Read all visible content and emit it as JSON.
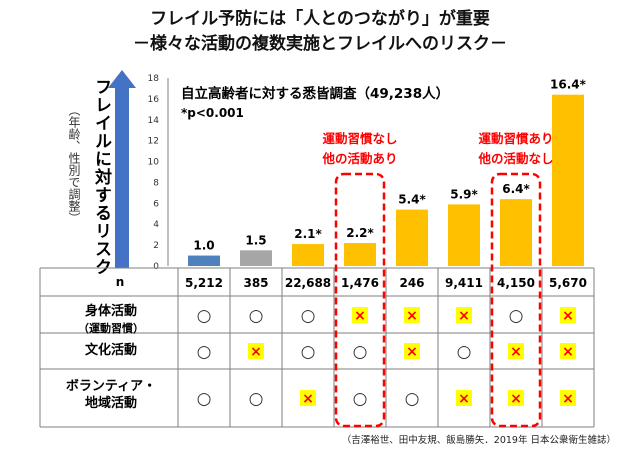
{
  "title_line1": "フレイル予防には「人とのつながり」が重要",
  "title_line2": "－様々な活動の複数実施とフレイルへのリスク－",
  "y_axis_label": "フレイルに対するリスク",
  "y_axis_note": "（年齢、性別で調整）",
  "study_title": "自立高齢者に対する悉皆調査（49,238人）",
  "significance_note": "*p<0.001",
  "annotation_left": [
    "運動習慣なし",
    "他の活動あり"
  ],
  "annotation_right": [
    "運動習慣あり",
    "他の活動なし"
  ],
  "n_label": "n",
  "n_values": [
    "5,212",
    "385",
    "22,688",
    "1,476",
    "246",
    "9,411",
    "4,150",
    "5,670"
  ],
  "row_labels": [
    {
      "main": "身体活動",
      "sub": "（運動習慣）"
    },
    {
      "main": "文化活動",
      "sub": ""
    },
    {
      "main": "ボランティア・",
      "sub": "地域活動"
    }
  ],
  "circle_symbol": "○",
  "cross_symbol": "×",
  "activity_matrix": [
    [
      true,
      true,
      true,
      false,
      false,
      false,
      true,
      false
    ],
    [
      true,
      false,
      true,
      true,
      false,
      true,
      false,
      false
    ],
    [
      true,
      true,
      false,
      true,
      true,
      false,
      false,
      false
    ]
  ],
  "citation": "（吉澤裕世、田中友規、飯島勝矢．2019年 日本公衆衛生雑誌）",
  "colors": {
    "bar_reference": "#4f81bd",
    "bar_gray": "#a6a6a6",
    "bar_yellow": "#ffc000",
    "arrow": "#4472c4",
    "annotation": "#ff0000",
    "cross_bg": "#ffff00",
    "cross": "#ff0000"
  },
  "chart_data": {
    "type": "bar",
    "categories": [
      "5,212",
      "385",
      "22,688",
      "1,476",
      "246",
      "9,411",
      "4,150",
      "5,670"
    ],
    "values": [
      1.0,
      1.5,
      2.1,
      2.2,
      5.4,
      5.9,
      6.4,
      16.4
    ],
    "value_labels": [
      "1.0",
      "1.5",
      "2.1*",
      "2.2*",
      "5.4*",
      "5.9*",
      "6.4*",
      "16.4*"
    ],
    "yticks": [
      0,
      2,
      4,
      6,
      8,
      10,
      12,
      14,
      16,
      18
    ],
    "ylim": [
      0,
      18
    ],
    "grid": false,
    "legend": "none"
  }
}
